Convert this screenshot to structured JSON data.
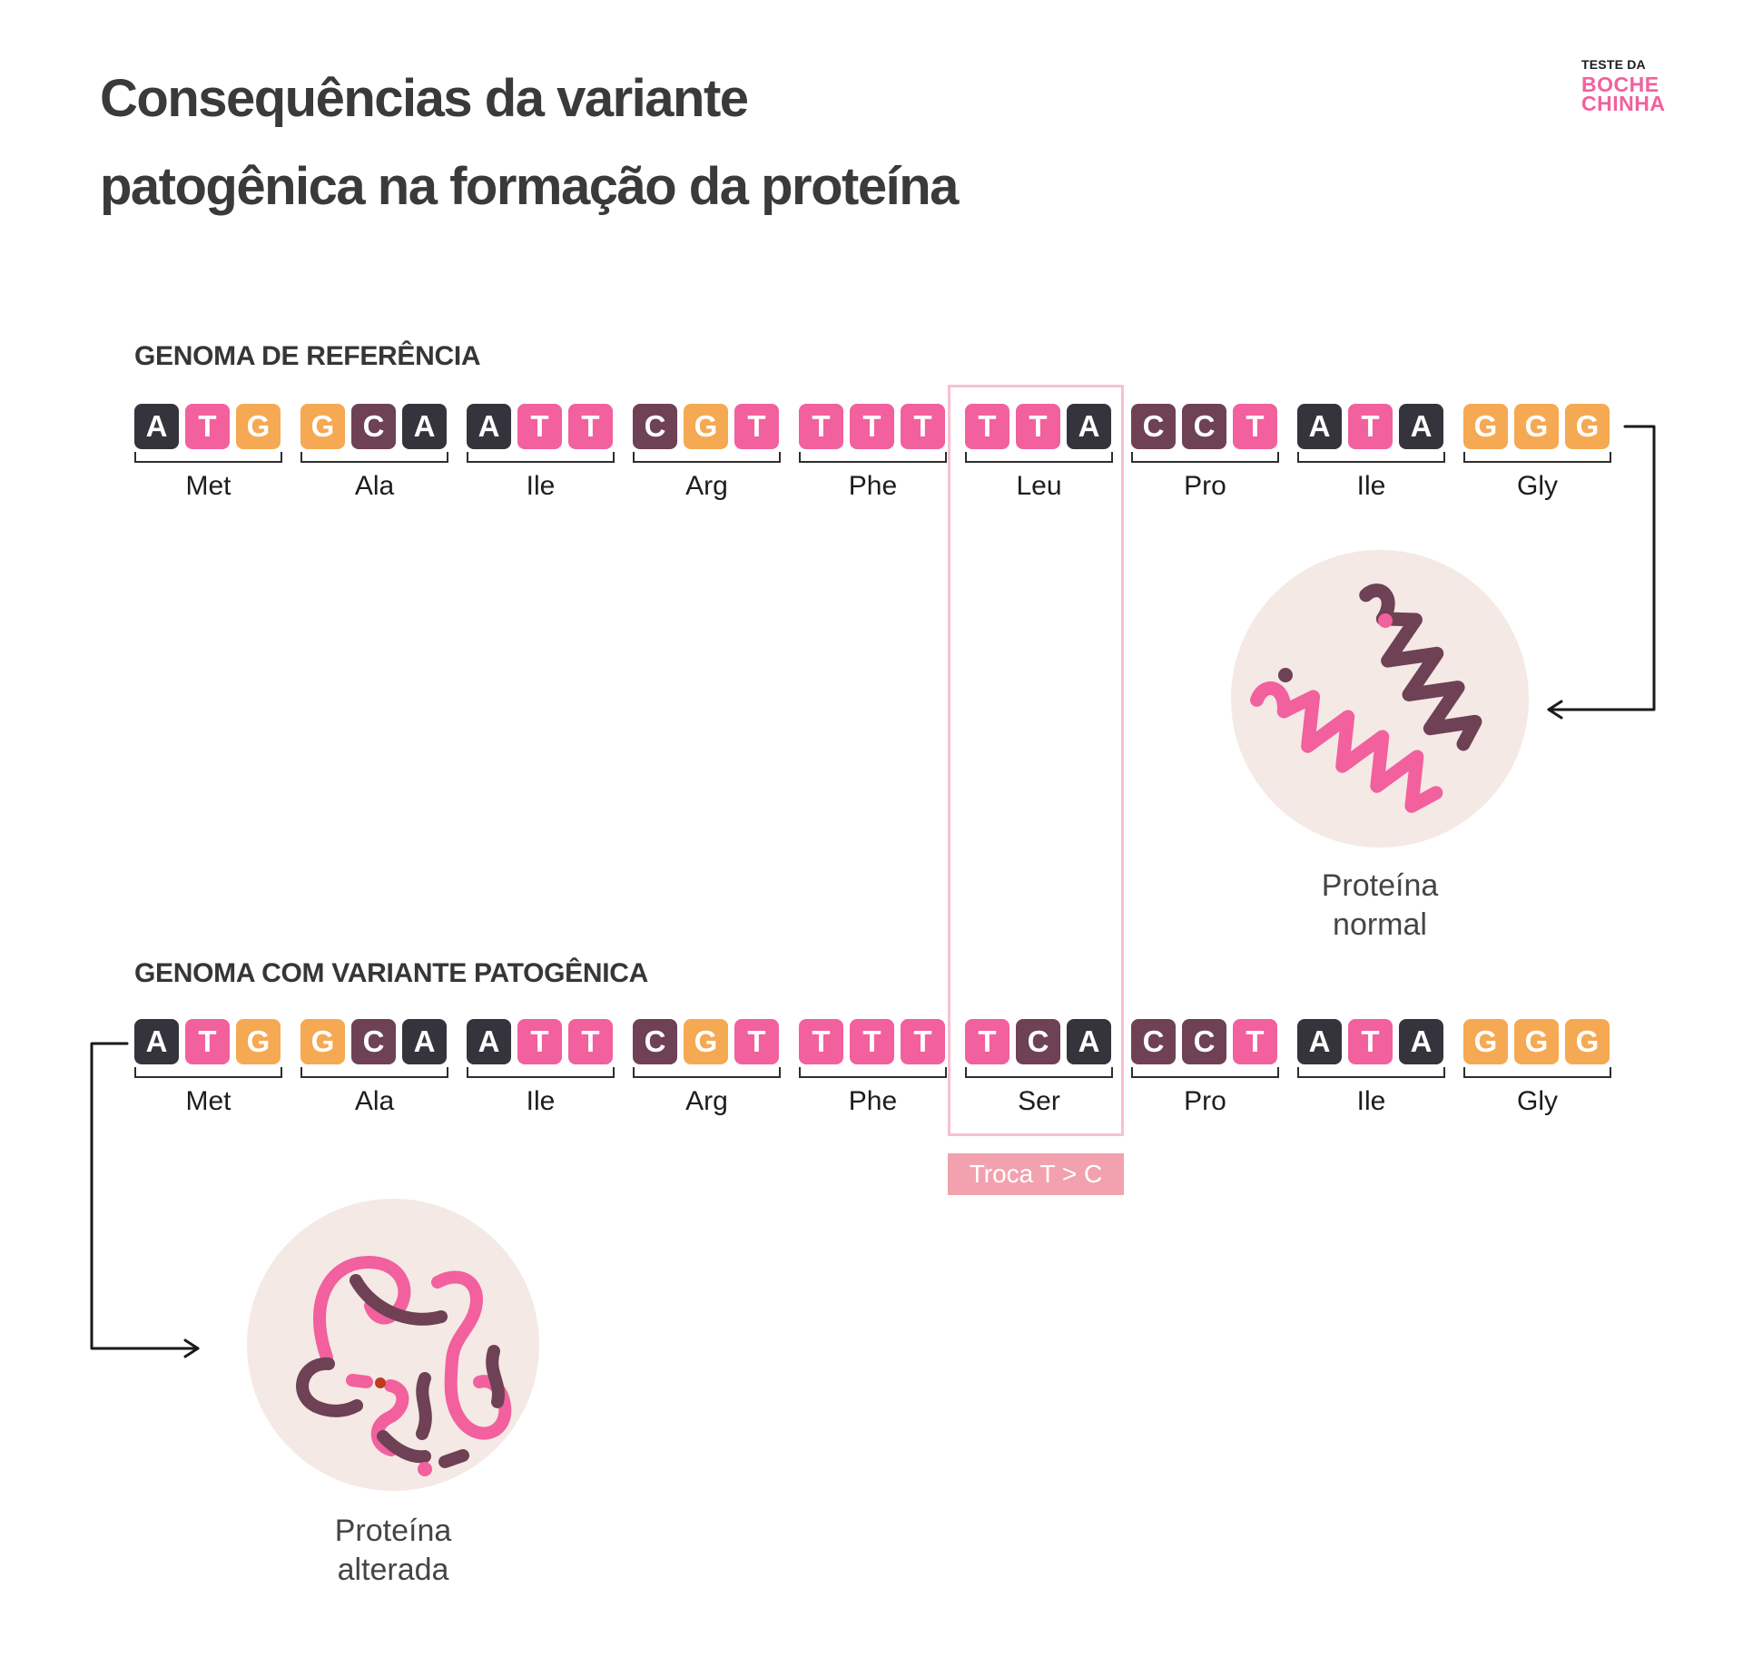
{
  "title": {
    "line1": "Consequências da variante",
    "line2": "patogênica na formação da proteína"
  },
  "logo": {
    "top": "TESTE DA",
    "mid": "BOCHE",
    "bottom": "CHINHA"
  },
  "colors": {
    "A": "#35333B",
    "T": "#F2609E",
    "G": "#F5A952",
    "C": "#6E4155",
    "pink": "#F2609E",
    "plum": "#6E4155",
    "highlight_border": "#F8C0D2",
    "swap_bg": "#F2A2AE",
    "circle_bg": "#F4E9E4",
    "arrow": "#1a1a1a"
  },
  "reference": {
    "heading": "GENOMA DE REFERÊNCIA",
    "codons": [
      {
        "bases": [
          "A",
          "T",
          "G"
        ],
        "amino": "Met"
      },
      {
        "bases": [
          "G",
          "C",
          "A"
        ],
        "amino": "Ala"
      },
      {
        "bases": [
          "A",
          "T",
          "T"
        ],
        "amino": "Ile"
      },
      {
        "bases": [
          "C",
          "G",
          "T"
        ],
        "amino": "Arg"
      },
      {
        "bases": [
          "T",
          "T",
          "T"
        ],
        "amino": "Phe"
      },
      {
        "bases": [
          "T",
          "T",
          "A"
        ],
        "amino": "Leu"
      },
      {
        "bases": [
          "C",
          "C",
          "T"
        ],
        "amino": "Pro"
      },
      {
        "bases": [
          "A",
          "T",
          "A"
        ],
        "amino": "Ile"
      },
      {
        "bases": [
          "G",
          "G",
          "G"
        ],
        "amino": "Gly"
      }
    ],
    "protein_label_line1": "Proteína",
    "protein_label_line2": "normal"
  },
  "variant": {
    "heading": "GENOMA COM VARIANTE PATOGÊNICA",
    "codons": [
      {
        "bases": [
          "A",
          "T",
          "G"
        ],
        "amino": "Met"
      },
      {
        "bases": [
          "G",
          "C",
          "A"
        ],
        "amino": "Ala"
      },
      {
        "bases": [
          "A",
          "T",
          "T"
        ],
        "amino": "Ile"
      },
      {
        "bases": [
          "C",
          "G",
          "T"
        ],
        "amino": "Arg"
      },
      {
        "bases": [
          "T",
          "T",
          "T"
        ],
        "amino": "Phe"
      },
      {
        "bases": [
          "T",
          "C",
          "A"
        ],
        "amino": "Ser"
      },
      {
        "bases": [
          "C",
          "C",
          "T"
        ],
        "amino": "Pro"
      },
      {
        "bases": [
          "A",
          "T",
          "A"
        ],
        "amino": "Ile"
      },
      {
        "bases": [
          "G",
          "G",
          "G"
        ],
        "amino": "Gly"
      }
    ],
    "swap_label": "Troca T > C",
    "protein_label_line1": "Proteína",
    "protein_label_line2": "alterada"
  }
}
